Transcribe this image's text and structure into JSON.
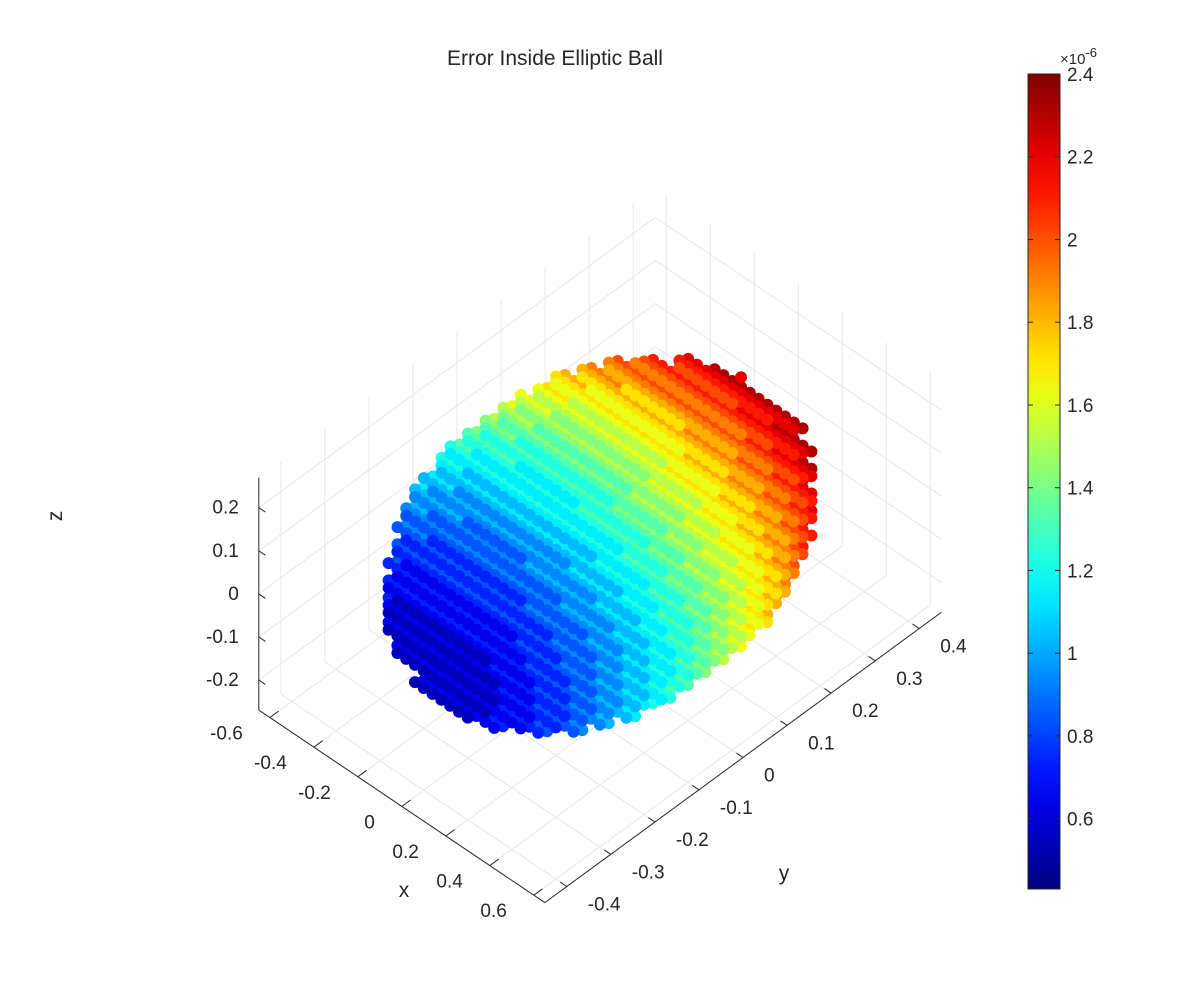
{
  "chart_data": {
    "type": "scatter",
    "subtype": "3d-scatter",
    "title": "Error Inside Elliptic Ball",
    "xlabel": "x",
    "ylabel": "y",
    "zlabel": "z",
    "xlim": [
      -0.65,
      0.65
    ],
    "ylim": [
      -0.45,
      0.45
    ],
    "zlim": [
      -0.27,
      0.27
    ],
    "x_ticks": [
      "-0.6",
      "-0.4",
      "-0.2",
      "0",
      "0.2",
      "0.4",
      "0.6"
    ],
    "y_ticks": [
      "-0.4",
      "-0.3",
      "-0.2",
      "-0.1",
      "0",
      "0.1",
      "0.2",
      "0.3",
      "0.4"
    ],
    "z_ticks": [
      "-0.2",
      "-0.1",
      "0",
      "0.1",
      "0.2"
    ],
    "ellipsoid_semi_axes": {
      "x": 0.6,
      "y": 0.4,
      "z": 0.25
    },
    "grid": true,
    "colormap": "jet",
    "color_variable": "error",
    "color_range": [
      4.3e-07,
      2.4e-06
    ],
    "colorbar": {
      "location": "right",
      "ticks": [
        "0.6",
        "0.8",
        "1",
        "1.2",
        "1.4",
        "1.6",
        "1.8",
        "2",
        "2.2",
        "2.4"
      ],
      "exponent_label": "×10^-6"
    },
    "error_trend": "error increases roughly linearly along the y direction, from about 0.45e-6 at y = -0.4 to about 2.4e-6 at y = 0.4",
    "marker": "filled circle"
  }
}
